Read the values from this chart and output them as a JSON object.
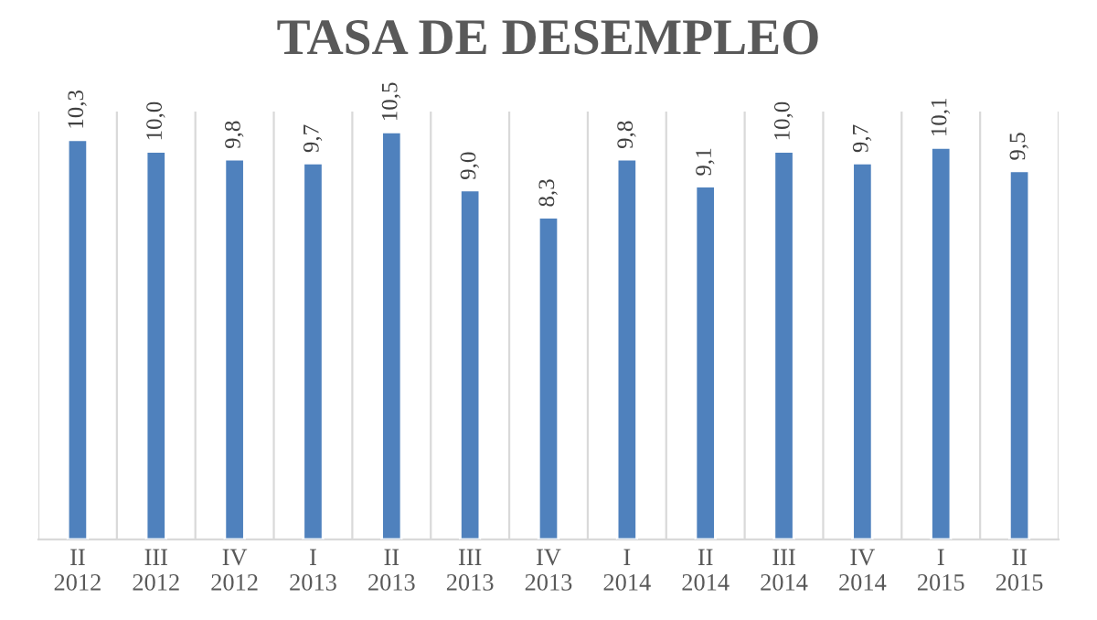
{
  "chart_data": {
    "type": "bar",
    "title": "TASA DE DESEMPLEO",
    "categories": [
      "II\n2012",
      "III\n2012",
      "IV\n2012",
      "I\n2013",
      "II\n2013",
      "III\n2013",
      "IV\n2013",
      "I\n2014",
      "II\n2014",
      "III\n2014",
      "IV\n2014",
      "I\n2015",
      "II\n2015"
    ],
    "values": [
      10.3,
      10.0,
      9.8,
      9.7,
      10.5,
      9.0,
      8.3,
      9.8,
      9.1,
      10.0,
      9.7,
      10.1,
      9.5
    ],
    "value_labels": [
      "10,3",
      "10,0",
      "9,8",
      "9,7",
      "10,5",
      "9,0",
      "8,3",
      "9,8",
      "9,1",
      "10,0",
      "9,7",
      "10,1",
      "9,5"
    ],
    "color": "#4f81bd",
    "grid": "x",
    "tick_labels": "x",
    "legend": false
  }
}
